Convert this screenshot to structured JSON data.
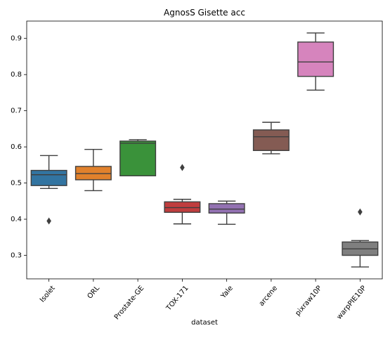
{
  "chart_data": {
    "type": "box",
    "title": "AgnosS Gisette acc",
    "xlabel": "dataset",
    "ylabel": "",
    "ylim": [
      0.235,
      0.948
    ],
    "yticks": [
      "0.3",
      "0.4",
      "0.5",
      "0.6",
      "0.7",
      "0.8",
      "0.9"
    ],
    "grid": false,
    "categories": [
      {
        "name": "Isolet",
        "color": "#3274a1",
        "min": 0.485,
        "q1": 0.493,
        "median": 0.523,
        "q3": 0.535,
        "max": 0.576,
        "outliers": [
          0.395
        ]
      },
      {
        "name": "ORL",
        "color": "#e1812c",
        "min": 0.479,
        "q1": 0.509,
        "median": 0.526,
        "q3": 0.546,
        "max": 0.593,
        "outliers": []
      },
      {
        "name": "Prostate-GE",
        "color": "#3a923a",
        "min": 0.52,
        "q1": 0.52,
        "median": 0.61,
        "q3": 0.616,
        "max": 0.62,
        "outliers": []
      },
      {
        "name": "TOX-171",
        "color": "#c03d3e",
        "min": 0.387,
        "q1": 0.419,
        "median": 0.432,
        "q3": 0.448,
        "max": 0.455,
        "outliers": [
          0.543
        ]
      },
      {
        "name": "Yale",
        "color": "#9372b2",
        "min": 0.386,
        "q1": 0.417,
        "median": 0.428,
        "q3": 0.443,
        "max": 0.45,
        "outliers": []
      },
      {
        "name": "arcene",
        "color": "#845b53",
        "min": 0.581,
        "q1": 0.59,
        "median": 0.628,
        "q3": 0.647,
        "max": 0.668,
        "outliers": []
      },
      {
        "name": "pixraw10P",
        "color": "#d684bd",
        "min": 0.757,
        "q1": 0.795,
        "median": 0.835,
        "q3": 0.89,
        "max": 0.915,
        "outliers": []
      },
      {
        "name": "warpPIE10P",
        "color": "#7f7f7f",
        "min": 0.268,
        "q1": 0.3,
        "median": 0.318,
        "q3": 0.337,
        "max": 0.341,
        "outliers": [
          0.42
        ]
      }
    ]
  }
}
